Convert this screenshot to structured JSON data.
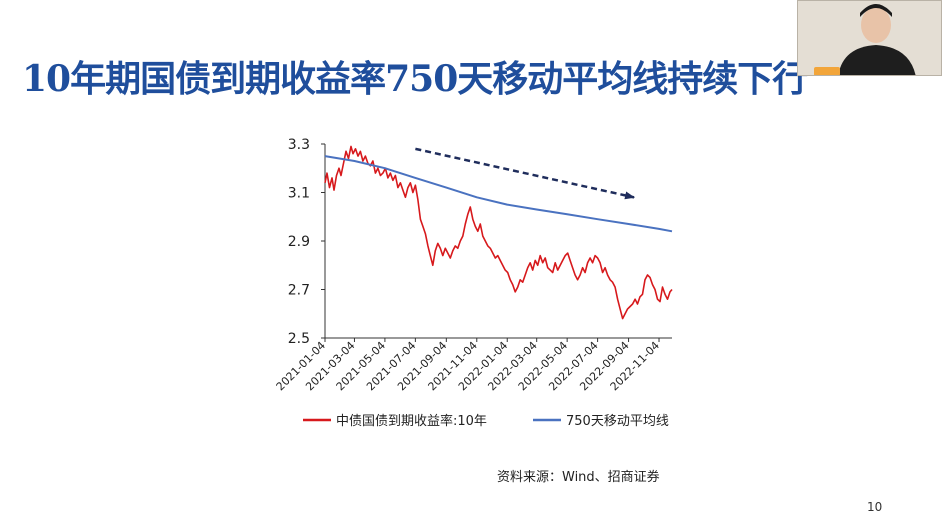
{
  "slide": {
    "title": "10年期国债到期收益率750天移动平均线持续下行",
    "source": "资料来源：Wind、招商证券",
    "page_number": "10"
  },
  "colors": {
    "title": "#1f4e9c",
    "yield_line": "#d7191c",
    "ma_line": "#4a72c0",
    "arrow": "#1f2d5c",
    "axis": "#333333"
  },
  "chart_data": {
    "type": "line",
    "title": "",
    "xlabel": "",
    "ylabel": "",
    "ylim": [
      2.5,
      3.3
    ],
    "yticks": [
      "3.3",
      "3.1",
      "2.9",
      "2.7",
      "2.5"
    ],
    "x_range": [
      "2021-01-04",
      "2022-11-30"
    ],
    "xticks": [
      "2021-01-04",
      "2021-03-04",
      "2021-05-04",
      "2021-07-04",
      "2021-09-04",
      "2021-11-04",
      "2022-01-04",
      "2022-03-04",
      "2022-05-04",
      "2022-07-04",
      "2022-09-04",
      "2022-11-04"
    ],
    "legend_position": "bottom",
    "grid": false,
    "annotation": {
      "type": "arrow",
      "meaning": "downward trend",
      "from": [
        "2021-07-04",
        3.28
      ],
      "to": [
        "2022-09-15",
        3.08
      ]
    },
    "series": [
      {
        "name": "中债国债到期收益率:10年",
        "color": "#d7191c",
        "points": [
          [
            "2021-01-04",
            3.14
          ],
          [
            "2021-01-08",
            3.18
          ],
          [
            "2021-01-13",
            3.12
          ],
          [
            "2021-01-18",
            3.16
          ],
          [
            "2021-01-22",
            3.11
          ],
          [
            "2021-01-27",
            3.17
          ],
          [
            "2021-02-01",
            3.2
          ],
          [
            "2021-02-05",
            3.17
          ],
          [
            "2021-02-10",
            3.22
          ],
          [
            "2021-02-15",
            3.27
          ],
          [
            "2021-02-20",
            3.24
          ],
          [
            "2021-02-25",
            3.29
          ],
          [
            "2021-03-01",
            3.26
          ],
          [
            "2021-03-06",
            3.28
          ],
          [
            "2021-03-11",
            3.25
          ],
          [
            "2021-03-16",
            3.27
          ],
          [
            "2021-03-21",
            3.23
          ],
          [
            "2021-03-26",
            3.25
          ],
          [
            "2021-03-31",
            3.22
          ],
          [
            "2021-04-05",
            3.21
          ],
          [
            "2021-04-10",
            3.23
          ],
          [
            "2021-04-15",
            3.18
          ],
          [
            "2021-04-20",
            3.2
          ],
          [
            "2021-04-25",
            3.17
          ],
          [
            "2021-04-30",
            3.18
          ],
          [
            "2021-05-05",
            3.2
          ],
          [
            "2021-05-10",
            3.16
          ],
          [
            "2021-05-15",
            3.18
          ],
          [
            "2021-05-20",
            3.15
          ],
          [
            "2021-05-25",
            3.17
          ],
          [
            "2021-05-30",
            3.12
          ],
          [
            "2021-06-04",
            3.14
          ],
          [
            "2021-06-09",
            3.11
          ],
          [
            "2021-06-14",
            3.08
          ],
          [
            "2021-06-19",
            3.12
          ],
          [
            "2021-06-24",
            3.14
          ],
          [
            "2021-06-29",
            3.1
          ],
          [
            "2021-07-04",
            3.13
          ],
          [
            "2021-07-09",
            3.07
          ],
          [
            "2021-07-14",
            2.99
          ],
          [
            "2021-07-19",
            2.96
          ],
          [
            "2021-07-24",
            2.93
          ],
          [
            "2021-07-29",
            2.88
          ],
          [
            "2021-08-03",
            2.84
          ],
          [
            "2021-08-08",
            2.8
          ],
          [
            "2021-08-13",
            2.86
          ],
          [
            "2021-08-18",
            2.89
          ],
          [
            "2021-08-23",
            2.87
          ],
          [
            "2021-08-28",
            2.84
          ],
          [
            "2021-09-02",
            2.87
          ],
          [
            "2021-09-07",
            2.85
          ],
          [
            "2021-09-12",
            2.83
          ],
          [
            "2021-09-17",
            2.86
          ],
          [
            "2021-09-22",
            2.88
          ],
          [
            "2021-09-27",
            2.87
          ],
          [
            "2021-10-02",
            2.9
          ],
          [
            "2021-10-07",
            2.92
          ],
          [
            "2021-10-12",
            2.97
          ],
          [
            "2021-10-17",
            3.01
          ],
          [
            "2021-10-22",
            3.04
          ],
          [
            "2021-10-27",
            2.99
          ],
          [
            "2021-11-01",
            2.96
          ],
          [
            "2021-11-06",
            2.94
          ],
          [
            "2021-11-11",
            2.97
          ],
          [
            "2021-11-16",
            2.92
          ],
          [
            "2021-11-21",
            2.9
          ],
          [
            "2021-11-26",
            2.88
          ],
          [
            "2021-12-01",
            2.87
          ],
          [
            "2021-12-06",
            2.85
          ],
          [
            "2021-12-11",
            2.83
          ],
          [
            "2021-12-16",
            2.84
          ],
          [
            "2021-12-21",
            2.82
          ],
          [
            "2021-12-26",
            2.8
          ],
          [
            "2021-12-31",
            2.78
          ],
          [
            "2022-01-05",
            2.77
          ],
          [
            "2022-01-10",
            2.74
          ],
          [
            "2022-01-15",
            2.72
          ],
          [
            "2022-01-20",
            2.69
          ],
          [
            "2022-01-25",
            2.71
          ],
          [
            "2022-01-30",
            2.74
          ],
          [
            "2022-02-04",
            2.73
          ],
          [
            "2022-02-09",
            2.76
          ],
          [
            "2022-02-14",
            2.79
          ],
          [
            "2022-02-19",
            2.81
          ],
          [
            "2022-02-24",
            2.78
          ],
          [
            "2022-03-01",
            2.82
          ],
          [
            "2022-03-06",
            2.8
          ],
          [
            "2022-03-11",
            2.84
          ],
          [
            "2022-03-16",
            2.81
          ],
          [
            "2022-03-21",
            2.83
          ],
          [
            "2022-03-26",
            2.79
          ],
          [
            "2022-03-31",
            2.78
          ],
          [
            "2022-04-05",
            2.77
          ],
          [
            "2022-04-10",
            2.81
          ],
          [
            "2022-04-15",
            2.78
          ],
          [
            "2022-04-20",
            2.8
          ],
          [
            "2022-04-25",
            2.82
          ],
          [
            "2022-04-30",
            2.84
          ],
          [
            "2022-05-05",
            2.85
          ],
          [
            "2022-05-10",
            2.82
          ],
          [
            "2022-05-15",
            2.79
          ],
          [
            "2022-05-20",
            2.76
          ],
          [
            "2022-05-25",
            2.74
          ],
          [
            "2022-05-30",
            2.76
          ],
          [
            "2022-06-04",
            2.79
          ],
          [
            "2022-06-09",
            2.77
          ],
          [
            "2022-06-14",
            2.81
          ],
          [
            "2022-06-19",
            2.83
          ],
          [
            "2022-06-24",
            2.81
          ],
          [
            "2022-06-29",
            2.84
          ],
          [
            "2022-07-04",
            2.83
          ],
          [
            "2022-07-09",
            2.81
          ],
          [
            "2022-07-14",
            2.77
          ],
          [
            "2022-07-19",
            2.79
          ],
          [
            "2022-07-24",
            2.76
          ],
          [
            "2022-07-29",
            2.74
          ],
          [
            "2022-08-03",
            2.73
          ],
          [
            "2022-08-08",
            2.71
          ],
          [
            "2022-08-13",
            2.66
          ],
          [
            "2022-08-18",
            2.62
          ],
          [
            "2022-08-23",
            2.58
          ],
          [
            "2022-08-28",
            2.6
          ],
          [
            "2022-09-02",
            2.62
          ],
          [
            "2022-09-07",
            2.63
          ],
          [
            "2022-09-12",
            2.64
          ],
          [
            "2022-09-17",
            2.66
          ],
          [
            "2022-09-22",
            2.64
          ],
          [
            "2022-09-27",
            2.67
          ],
          [
            "2022-10-02",
            2.68
          ],
          [
            "2022-10-07",
            2.74
          ],
          [
            "2022-10-12",
            2.76
          ],
          [
            "2022-10-17",
            2.75
          ],
          [
            "2022-10-22",
            2.72
          ],
          [
            "2022-10-27",
            2.7
          ],
          [
            "2022-11-01",
            2.66
          ],
          [
            "2022-11-06",
            2.65
          ],
          [
            "2022-11-11",
            2.71
          ],
          [
            "2022-11-16",
            2.68
          ],
          [
            "2022-11-21",
            2.66
          ],
          [
            "2022-11-26",
            2.69
          ],
          [
            "2022-11-30",
            2.7
          ]
        ]
      },
      {
        "name": "750天移动平均线",
        "color": "#4a72c0",
        "points": [
          [
            "2021-01-04",
            3.25
          ],
          [
            "2021-03-04",
            3.23
          ],
          [
            "2021-05-04",
            3.2
          ],
          [
            "2021-07-04",
            3.16
          ],
          [
            "2021-09-04",
            3.12
          ],
          [
            "2021-11-04",
            3.08
          ],
          [
            "2022-01-04",
            3.05
          ],
          [
            "2022-03-04",
            3.03
          ],
          [
            "2022-05-04",
            3.01
          ],
          [
            "2022-07-04",
            2.99
          ],
          [
            "2022-09-04",
            2.97
          ],
          [
            "2022-11-04",
            2.95
          ],
          [
            "2022-11-30",
            2.94
          ]
        ]
      }
    ]
  }
}
